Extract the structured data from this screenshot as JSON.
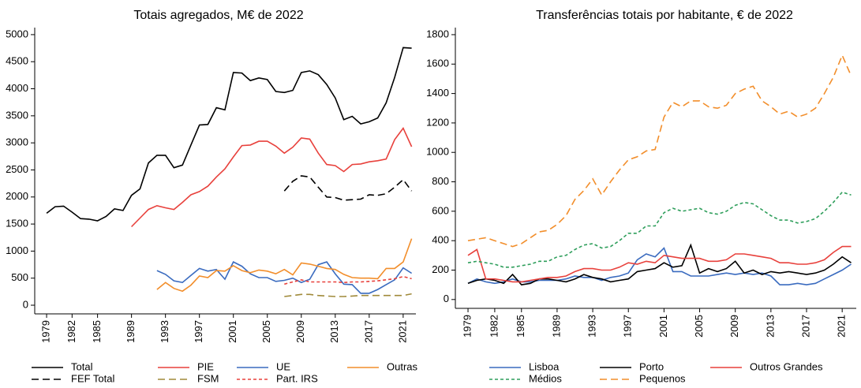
{
  "chart_data": [
    {
      "type": "line",
      "title": "Totais agregados, M€ de 2022",
      "x": [
        1979,
        1980,
        1981,
        1982,
        1983,
        1984,
        1985,
        1986,
        1987,
        1988,
        1989,
        1990,
        1991,
        1992,
        1993,
        1994,
        1995,
        1996,
        1997,
        1998,
        1999,
        2000,
        2001,
        2002,
        2003,
        2004,
        2005,
        2006,
        2007,
        2008,
        2009,
        2010,
        2011,
        2012,
        2013,
        2014,
        2015,
        2016,
        2017,
        2018,
        2019,
        2020,
        2021,
        2022
      ],
      "xlim": [
        1977.6,
        2022.5
      ],
      "xticks": [
        1979,
        1982,
        1985,
        1989,
        1993,
        1997,
        2001,
        2005,
        2009,
        2013,
        2017,
        2021
      ],
      "ylim": [
        -160,
        5130
      ],
      "yticks": [
        0,
        500,
        1000,
        1500,
        2000,
        2500,
        3000,
        3500,
        4000,
        4500,
        5000
      ],
      "series": [
        {
          "name": "Total",
          "color": "#000000",
          "dash": "solid",
          "values": [
            1700,
            1820,
            1830,
            1720,
            1600,
            1590,
            1560,
            1640,
            1780,
            1750,
            2030,
            2150,
            2630,
            2770,
            2770,
            2540,
            2590,
            2960,
            3330,
            3340,
            3650,
            3610,
            4300,
            4290,
            4150,
            4200,
            4170,
            3950,
            3930,
            3970,
            4300,
            4330,
            4260,
            4080,
            3830,
            3430,
            3490,
            3350,
            3390,
            3460,
            3740,
            4210,
            4760,
            4750
          ]
        },
        {
          "name": "PIE",
          "color": "#e8413c",
          "dash": "solid",
          "values": [
            null,
            null,
            null,
            null,
            null,
            null,
            null,
            null,
            null,
            null,
            1450,
            1610,
            1770,
            1840,
            1800,
            1770,
            1900,
            2040,
            2100,
            2200,
            2370,
            2520,
            2740,
            2950,
            2960,
            3030,
            3030,
            2940,
            2810,
            2920,
            3090,
            3070,
            2810,
            2600,
            2580,
            2470,
            2600,
            2610,
            2650,
            2670,
            2700,
            3060,
            3270,
            2930
          ]
        },
        {
          "name": "UE",
          "color": "#3a6bbf",
          "dash": "solid",
          "values": [
            null,
            null,
            null,
            null,
            null,
            null,
            null,
            null,
            null,
            null,
            null,
            null,
            null,
            640,
            570,
            450,
            420,
            550,
            680,
            630,
            660,
            480,
            800,
            720,
            580,
            510,
            510,
            440,
            460,
            500,
            420,
            480,
            750,
            800,
            580,
            390,
            380,
            220,
            220,
            290,
            380,
            470,
            690,
            590
          ]
        },
        {
          "name": "Outras",
          "color": "#f28e2b",
          "dash": "solid",
          "values": [
            null,
            null,
            null,
            null,
            null,
            null,
            null,
            null,
            null,
            null,
            null,
            null,
            null,
            290,
            420,
            310,
            260,
            370,
            540,
            510,
            640,
            630,
            730,
            640,
            600,
            650,
            630,
            580,
            660,
            560,
            780,
            760,
            720,
            680,
            660,
            570,
            510,
            500,
            500,
            490,
            680,
            680,
            800,
            1230
          ]
        },
        {
          "name": "FEF Total",
          "color": "#000000",
          "dash": "long",
          "values": [
            null,
            null,
            null,
            null,
            null,
            null,
            null,
            null,
            null,
            null,
            null,
            null,
            null,
            null,
            null,
            null,
            null,
            null,
            null,
            null,
            null,
            null,
            null,
            null,
            null,
            null,
            null,
            null,
            2110,
            2290,
            2390,
            2370,
            2180,
            2000,
            1990,
            1940,
            1950,
            1960,
            2040,
            2030,
            2060,
            2180,
            2320,
            2110
          ]
        },
        {
          "name": "FSM",
          "color": "#a08a3a",
          "dash": "long",
          "values": [
            null,
            null,
            null,
            null,
            null,
            null,
            null,
            null,
            null,
            null,
            null,
            null,
            null,
            null,
            null,
            null,
            null,
            null,
            null,
            null,
            null,
            null,
            null,
            null,
            null,
            null,
            null,
            null,
            160,
            180,
            200,
            200,
            180,
            170,
            160,
            160,
            170,
            180,
            180,
            180,
            180,
            180,
            180,
            210
          ]
        },
        {
          "name": "Part. IRS",
          "color": "#e8413c",
          "dash": "short",
          "values": [
            null,
            null,
            null,
            null,
            null,
            null,
            null,
            null,
            null,
            null,
            null,
            null,
            null,
            null,
            null,
            null,
            null,
            null,
            null,
            null,
            null,
            null,
            null,
            null,
            null,
            null,
            null,
            null,
            390,
            430,
            470,
            430,
            430,
            430,
            430,
            420,
            430,
            430,
            440,
            450,
            470,
            490,
            530,
            490
          ]
        }
      ]
    },
    {
      "type": "line",
      "title": "Transferências totais por habitante, € de 2022",
      "x": [
        1979,
        1980,
        1981,
        1982,
        1983,
        1984,
        1985,
        1986,
        1987,
        1988,
        1989,
        1990,
        1991,
        1992,
        1993,
        1994,
        1995,
        1996,
        1997,
        1998,
        1999,
        2000,
        2001,
        2002,
        2003,
        2004,
        2005,
        2006,
        2007,
        2008,
        2009,
        2010,
        2011,
        2012,
        2013,
        2014,
        2015,
        2016,
        2017,
        2018,
        2019,
        2020,
        2021,
        2022
      ],
      "xlim": [
        1977.58,
        2022.58
      ],
      "xticks": [
        1979,
        1982,
        1985,
        1989,
        1993,
        1997,
        2001,
        2005,
        2009,
        2013,
        2017,
        2021
      ],
      "ylim": [
        -60,
        1848
      ],
      "yticks": [
        0,
        200,
        400,
        600,
        800,
        1000,
        1200,
        1400,
        1600,
        1800
      ],
      "series": [
        {
          "name": "Lisboa",
          "color": "#3a6bbf",
          "dash": "solid",
          "values": [
            110,
            140,
            120,
            110,
            120,
            140,
            120,
            120,
            130,
            130,
            130,
            140,
            160,
            150,
            150,
            130,
            150,
            160,
            180,
            270,
            310,
            290,
            350,
            190,
            190,
            160,
            160,
            160,
            170,
            180,
            170,
            180,
            170,
            180,
            160,
            100,
            100,
            110,
            100,
            110,
            140,
            170,
            200,
            240
          ]
        },
        {
          "name": "Porto",
          "color": "#000000",
          "dash": "solid",
          "values": [
            110,
            130,
            140,
            130,
            110,
            170,
            100,
            110,
            140,
            140,
            130,
            120,
            140,
            170,
            150,
            140,
            120,
            130,
            140,
            190,
            200,
            210,
            250,
            220,
            230,
            370,
            180,
            210,
            190,
            210,
            260,
            180,
            200,
            170,
            190,
            180,
            190,
            180,
            170,
            180,
            200,
            240,
            290,
            250
          ]
        },
        {
          "name": "Outros Grandes",
          "color": "#e8413c",
          "dash": "solid",
          "values": [
            300,
            340,
            140,
            140,
            130,
            120,
            120,
            130,
            140,
            150,
            150,
            160,
            190,
            210,
            210,
            200,
            200,
            220,
            250,
            240,
            260,
            250,
            300,
            290,
            280,
            280,
            280,
            260,
            260,
            270,
            310,
            310,
            300,
            290,
            280,
            250,
            250,
            240,
            240,
            250,
            270,
            320,
            360,
            360
          ]
        },
        {
          "name": "Médios",
          "color": "#2e9e5b",
          "dash": "short",
          "values": [
            250,
            260,
            250,
            240,
            220,
            220,
            230,
            240,
            260,
            260,
            290,
            300,
            340,
            370,
            380,
            350,
            360,
            400,
            450,
            450,
            500,
            500,
            590,
            620,
            600,
            610,
            620,
            590,
            580,
            600,
            640,
            660,
            650,
            610,
            570,
            540,
            540,
            520,
            530,
            550,
            600,
            660,
            730,
            710
          ]
        },
        {
          "name": "Pequenos",
          "color": "#f28e2b",
          "dash": "long",
          "values": [
            400,
            410,
            420,
            400,
            380,
            360,
            380,
            420,
            460,
            470,
            510,
            570,
            680,
            740,
            820,
            710,
            800,
            880,
            950,
            970,
            1010,
            1020,
            1240,
            1340,
            1310,
            1350,
            1350,
            1310,
            1300,
            1320,
            1400,
            1430,
            1450,
            1350,
            1310,
            1260,
            1280,
            1240,
            1260,
            1300,
            1400,
            1510,
            1660,
            1520
          ]
        }
      ]
    }
  ]
}
